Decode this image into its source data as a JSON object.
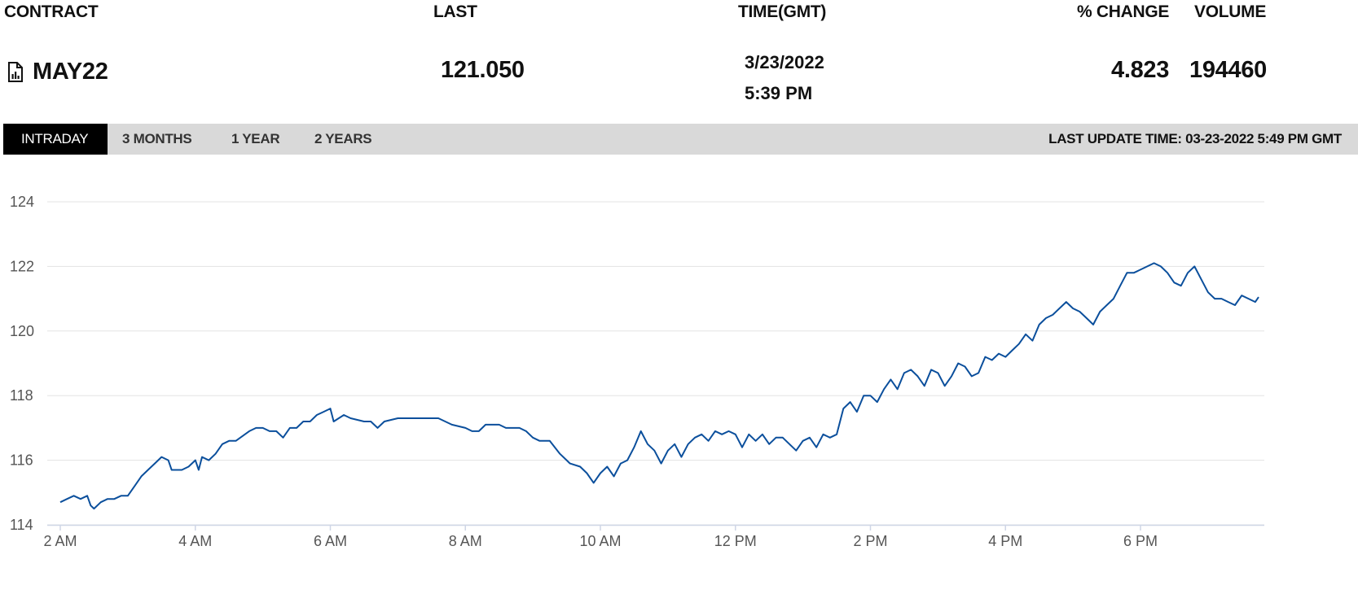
{
  "header": {
    "contract_label": "CONTRACT",
    "last_label": "LAST",
    "time_label": "TIME(GMT)",
    "change_label": "% CHANGE",
    "volume_label": "VOLUME"
  },
  "quote": {
    "contract": "MAY22",
    "contract_icon": "document-chart-icon",
    "last": "121.050",
    "date": "3/23/2022",
    "time": "5:39 PM",
    "change": "4.823",
    "volume": "194460"
  },
  "tabs": [
    {
      "label": "INTRADAY",
      "active": true
    },
    {
      "label": "3 MONTHS",
      "active": false
    },
    {
      "label": "1 YEAR",
      "active": false
    },
    {
      "label": "2 YEARS",
      "active": false
    }
  ],
  "last_update": "LAST UPDATE TIME: 03-23-2022 5:49 PM GMT",
  "colors": {
    "line": "#0b4f9c",
    "active_tab_bg": "#000000",
    "tab_bar_bg": "#d9d9d9",
    "grid": "#e3e3e3"
  },
  "chart_data": {
    "type": "line",
    "grid": true,
    "x_unit": "hour of day (GMT)",
    "ylim": [
      114,
      124
    ],
    "xlim": [
      2,
      19.75
    ],
    "y_ticks": [
      114,
      116,
      118,
      120,
      122,
      124
    ],
    "x_ticks": [
      {
        "value": 2,
        "label": "2 AM"
      },
      {
        "value": 4,
        "label": "4 AM"
      },
      {
        "value": 6,
        "label": "6 AM"
      },
      {
        "value": 8,
        "label": "8 AM"
      },
      {
        "value": 10,
        "label": "10 AM"
      },
      {
        "value": 12,
        "label": "12 PM"
      },
      {
        "value": 14,
        "label": "2 PM"
      },
      {
        "value": 16,
        "label": "4 PM"
      },
      {
        "value": 18,
        "label": "6 PM"
      }
    ],
    "series": [
      {
        "values": [
          [
            2.0,
            114.7
          ],
          [
            2.1,
            114.8
          ],
          [
            2.2,
            114.9
          ],
          [
            2.3,
            114.8
          ],
          [
            2.4,
            114.9
          ],
          [
            2.45,
            114.6
          ],
          [
            2.5,
            114.5
          ],
          [
            2.6,
            114.7
          ],
          [
            2.7,
            114.8
          ],
          [
            2.8,
            114.8
          ],
          [
            2.9,
            114.9
          ],
          [
            3.0,
            114.9
          ],
          [
            3.1,
            115.2
          ],
          [
            3.2,
            115.5
          ],
          [
            3.3,
            115.7
          ],
          [
            3.4,
            115.9
          ],
          [
            3.5,
            116.1
          ],
          [
            3.6,
            116.0
          ],
          [
            3.65,
            115.7
          ],
          [
            3.8,
            115.7
          ],
          [
            3.9,
            115.8
          ],
          [
            4.0,
            116.0
          ],
          [
            4.05,
            115.7
          ],
          [
            4.1,
            116.1
          ],
          [
            4.2,
            116.0
          ],
          [
            4.3,
            116.2
          ],
          [
            4.4,
            116.5
          ],
          [
            4.5,
            116.6
          ],
          [
            4.6,
            116.6
          ],
          [
            4.8,
            116.9
          ],
          [
            4.9,
            117.0
          ],
          [
            5.0,
            117.0
          ],
          [
            5.1,
            116.9
          ],
          [
            5.2,
            116.9
          ],
          [
            5.3,
            116.7
          ],
          [
            5.4,
            117.0
          ],
          [
            5.5,
            117.0
          ],
          [
            5.6,
            117.2
          ],
          [
            5.7,
            117.2
          ],
          [
            5.8,
            117.4
          ],
          [
            5.9,
            117.5
          ],
          [
            6.0,
            117.6
          ],
          [
            6.05,
            117.2
          ],
          [
            6.2,
            117.4
          ],
          [
            6.3,
            117.3
          ],
          [
            6.5,
            117.2
          ],
          [
            6.6,
            117.2
          ],
          [
            6.7,
            117.0
          ],
          [
            6.8,
            117.2
          ],
          [
            7.0,
            117.3
          ],
          [
            7.2,
            117.3
          ],
          [
            7.4,
            117.3
          ],
          [
            7.6,
            117.3
          ],
          [
            7.8,
            117.1
          ],
          [
            8.0,
            117.0
          ],
          [
            8.1,
            116.9
          ],
          [
            8.2,
            116.9
          ],
          [
            8.3,
            117.1
          ],
          [
            8.5,
            117.1
          ],
          [
            8.6,
            117.0
          ],
          [
            8.8,
            117.0
          ],
          [
            8.9,
            116.9
          ],
          [
            9.0,
            116.7
          ],
          [
            9.1,
            116.6
          ],
          [
            9.25,
            116.6
          ],
          [
            9.4,
            116.2
          ],
          [
            9.5,
            116.0
          ],
          [
            9.55,
            115.9
          ],
          [
            9.7,
            115.8
          ],
          [
            9.8,
            115.6
          ],
          [
            9.9,
            115.3
          ],
          [
            10.0,
            115.6
          ],
          [
            10.1,
            115.8
          ],
          [
            10.2,
            115.5
          ],
          [
            10.3,
            115.9
          ],
          [
            10.4,
            116.0
          ],
          [
            10.5,
            116.4
          ],
          [
            10.6,
            116.9
          ],
          [
            10.7,
            116.5
          ],
          [
            10.8,
            116.3
          ],
          [
            10.9,
            115.9
          ],
          [
            11.0,
            116.3
          ],
          [
            11.1,
            116.5
          ],
          [
            11.2,
            116.1
          ],
          [
            11.3,
            116.5
          ],
          [
            11.4,
            116.7
          ],
          [
            11.5,
            116.8
          ],
          [
            11.6,
            116.6
          ],
          [
            11.7,
            116.9
          ],
          [
            11.8,
            116.8
          ],
          [
            11.9,
            116.9
          ],
          [
            12.0,
            116.8
          ],
          [
            12.1,
            116.4
          ],
          [
            12.2,
            116.8
          ],
          [
            12.3,
            116.6
          ],
          [
            12.4,
            116.8
          ],
          [
            12.5,
            116.5
          ],
          [
            12.6,
            116.7
          ],
          [
            12.7,
            116.7
          ],
          [
            12.8,
            116.5
          ],
          [
            12.9,
            116.3
          ],
          [
            13.0,
            116.6
          ],
          [
            13.1,
            116.7
          ],
          [
            13.2,
            116.4
          ],
          [
            13.3,
            116.8
          ],
          [
            13.4,
            116.7
          ],
          [
            13.5,
            116.8
          ],
          [
            13.6,
            117.6
          ],
          [
            13.7,
            117.8
          ],
          [
            13.8,
            117.5
          ],
          [
            13.9,
            118.0
          ],
          [
            14.0,
            118.0
          ],
          [
            14.1,
            117.8
          ],
          [
            14.2,
            118.2
          ],
          [
            14.3,
            118.5
          ],
          [
            14.4,
            118.2
          ],
          [
            14.5,
            118.7
          ],
          [
            14.6,
            118.8
          ],
          [
            14.7,
            118.6
          ],
          [
            14.8,
            118.3
          ],
          [
            14.9,
            118.8
          ],
          [
            15.0,
            118.7
          ],
          [
            15.1,
            118.3
          ],
          [
            15.2,
            118.6
          ],
          [
            15.3,
            119.0
          ],
          [
            15.4,
            118.9
          ],
          [
            15.5,
            118.6
          ],
          [
            15.6,
            118.7
          ],
          [
            15.7,
            119.2
          ],
          [
            15.8,
            119.1
          ],
          [
            15.9,
            119.3
          ],
          [
            16.0,
            119.2
          ],
          [
            16.1,
            119.4
          ],
          [
            16.2,
            119.6
          ],
          [
            16.3,
            119.9
          ],
          [
            16.4,
            119.7
          ],
          [
            16.5,
            120.2
          ],
          [
            16.6,
            120.4
          ],
          [
            16.7,
            120.5
          ],
          [
            16.8,
            120.7
          ],
          [
            16.9,
            120.9
          ],
          [
            17.0,
            120.7
          ],
          [
            17.1,
            120.6
          ],
          [
            17.2,
            120.4
          ],
          [
            17.3,
            120.2
          ],
          [
            17.4,
            120.6
          ],
          [
            17.5,
            120.8
          ],
          [
            17.6,
            121.0
          ],
          [
            17.7,
            121.4
          ],
          [
            17.8,
            121.8
          ],
          [
            17.9,
            121.8
          ],
          [
            18.0,
            121.9
          ],
          [
            18.1,
            122.0
          ],
          [
            18.2,
            122.1
          ],
          [
            18.3,
            122.0
          ],
          [
            18.4,
            121.8
          ],
          [
            18.5,
            121.5
          ],
          [
            18.6,
            121.4
          ],
          [
            18.7,
            121.8
          ],
          [
            18.8,
            122.0
          ],
          [
            18.9,
            121.6
          ],
          [
            19.0,
            121.2
          ],
          [
            19.1,
            121.0
          ],
          [
            19.2,
            121.0
          ],
          [
            19.3,
            120.9
          ],
          [
            19.4,
            120.8
          ],
          [
            19.5,
            121.1
          ],
          [
            19.6,
            121.0
          ],
          [
            19.7,
            120.9
          ],
          [
            19.75,
            121.05
          ]
        ]
      }
    ]
  }
}
